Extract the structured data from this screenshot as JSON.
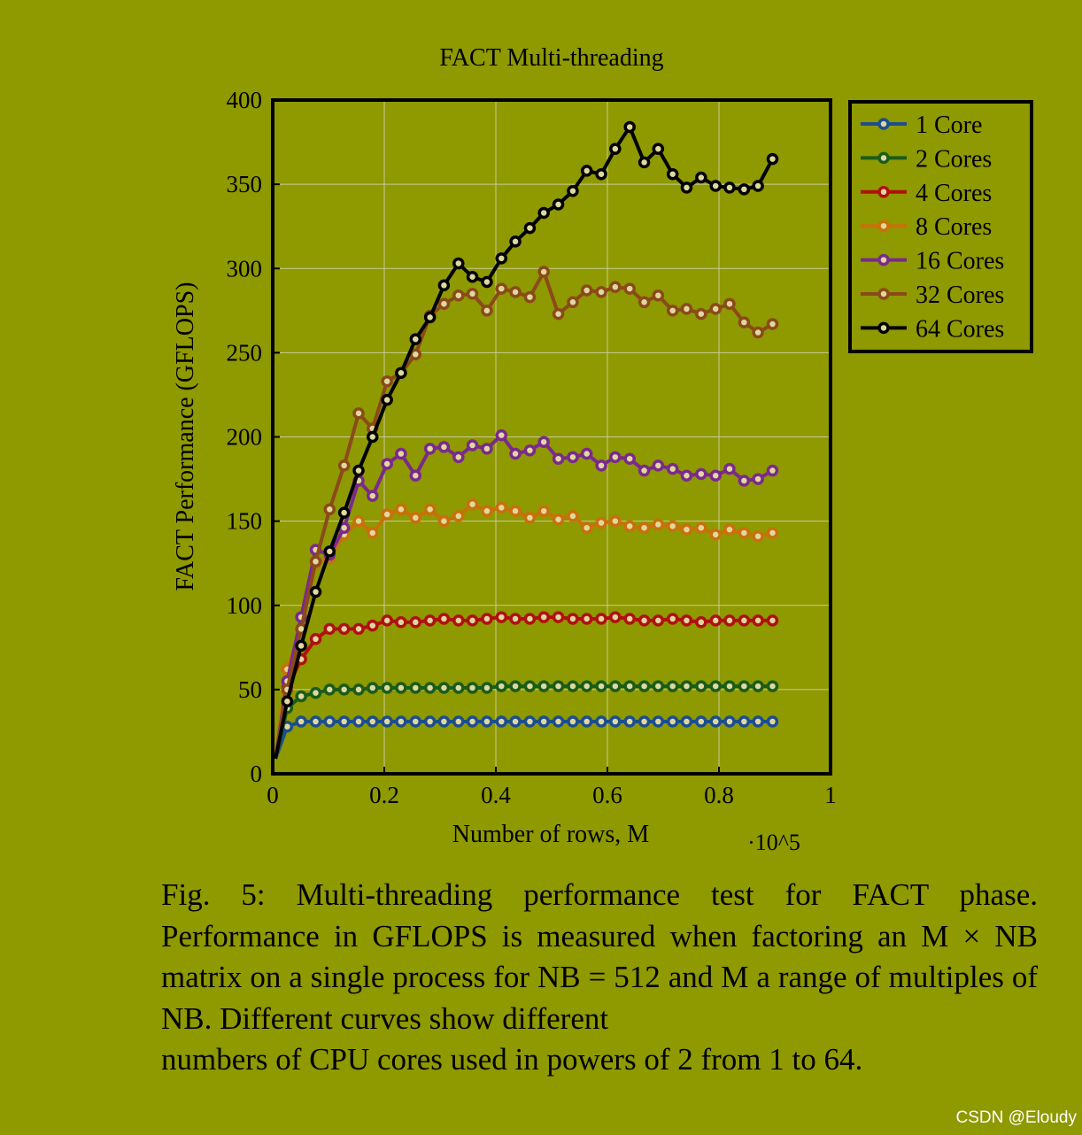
{
  "chart_data": {
    "type": "line",
    "title": "FACT Multi-threading",
    "xlabel": "Number of rows, M",
    "ylabel": "FACT Performance (GFLOPS)",
    "x_scale_label": "·10^5",
    "xlim": [
      0,
      1
    ],
    "ylim": [
      0,
      400
    ],
    "xticks": [
      "0",
      "0.2",
      "0.4",
      "0.6",
      "0.8",
      "1"
    ],
    "yticks": [
      "0",
      "50",
      "100",
      "150",
      "200",
      "250",
      "300",
      "350",
      "400"
    ],
    "grid": true,
    "legend_position": "outside-top-right",
    "x": [
      0.005,
      0.026,
      0.051,
      0.077,
      0.102,
      0.128,
      0.154,
      0.179,
      0.205,
      0.23,
      0.256,
      0.282,
      0.307,
      0.333,
      0.358,
      0.384,
      0.41,
      0.435,
      0.461,
      0.486,
      0.512,
      0.538,
      0.563,
      0.589,
      0.614,
      0.64,
      0.666,
      0.691,
      0.717,
      0.742,
      0.768,
      0.794,
      0.819,
      0.845,
      0.87,
      0.896
    ],
    "series": [
      {
        "name": "1 Core",
        "color": "#1d4e8c",
        "values": [
          9,
          28,
          31,
          31,
          31,
          31,
          31,
          31,
          31,
          31,
          31,
          31,
          31,
          31,
          31,
          31,
          31,
          31,
          31,
          31,
          31,
          31,
          31,
          31,
          31,
          31,
          31,
          31,
          31,
          31,
          31,
          31,
          31,
          31,
          31,
          31
        ]
      },
      {
        "name": "2 Cores",
        "color": "#1a5c1a",
        "values": [
          9,
          39,
          46,
          48,
          50,
          50,
          50,
          51,
          51,
          51,
          51,
          51,
          51,
          51,
          51,
          51,
          52,
          52,
          52,
          52,
          52,
          52,
          52,
          52,
          52,
          52,
          52,
          52,
          52,
          52,
          52,
          52,
          52,
          52,
          52,
          52
        ]
      },
      {
        "name": "4 Cores",
        "color": "#b01010",
        "values": [
          9,
          51,
          68,
          80,
          86,
          86,
          86,
          88,
          91,
          90,
          90,
          91,
          92,
          91,
          91,
          92,
          93,
          92,
          92,
          93,
          93,
          92,
          92,
          92,
          93,
          92,
          91,
          91,
          92,
          91,
          90,
          91,
          91,
          91,
          91,
          91
        ]
      },
      {
        "name": "8 Cores",
        "color": "#c8700a",
        "values": [
          9,
          62,
          86,
          125,
          128,
          142,
          150,
          143,
          154,
          157,
          152,
          157,
          150,
          153,
          160,
          156,
          158,
          156,
          152,
          156,
          151,
          153,
          146,
          149,
          150,
          147,
          146,
          148,
          147,
          145,
          146,
          142,
          145,
          143,
          141,
          143
        ]
      },
      {
        "name": "16 Cores",
        "color": "#7a2a8c",
        "values": [
          9,
          55,
          93,
          133,
          130,
          146,
          174,
          165,
          184,
          190,
          177,
          193,
          194,
          188,
          195,
          193,
          201,
          190,
          192,
          197,
          187,
          188,
          190,
          183,
          188,
          187,
          180,
          183,
          181,
          177,
          178,
          177,
          181,
          174,
          175,
          180
        ]
      },
      {
        "name": "32 Cores",
        "color": "#8a4a1a",
        "values": [
          9,
          50,
          86,
          126,
          157,
          183,
          214,
          205,
          233,
          238,
          249,
          272,
          279,
          284,
          285,
          275,
          288,
          286,
          283,
          298,
          273,
          280,
          287,
          286,
          289,
          288,
          280,
          284,
          275,
          276,
          273,
          276,
          279,
          268,
          262,
          267
        ]
      },
      {
        "name": "64 Cores",
        "color": "#000000",
        "values": [
          9,
          43,
          76,
          108,
          132,
          155,
          180,
          200,
          222,
          238,
          258,
          271,
          290,
          303,
          295,
          292,
          306,
          316,
          324,
          333,
          338,
          346,
          358,
          356,
          371,
          384,
          363,
          371,
          356,
          348,
          354,
          349,
          348,
          347,
          349,
          365
        ]
      }
    ]
  },
  "caption": {
    "text": "Fig. 5: Multi-threading performance test for FACT phase. Performance in GFLOPS is measured when factoring an M × NB matrix on a single process for NB = 512 and M a range of multiples of NB. Different curves show different",
    "last_line": "numbers of CPU cores used in powers of 2 from 1 to 64."
  },
  "watermark": "CSDN @Eloudy"
}
